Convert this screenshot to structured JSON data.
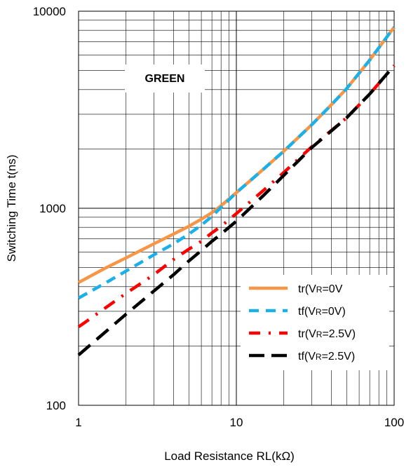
{
  "chart_data": {
    "type": "line",
    "xlabel": "Load Resistance RL(kΩ)",
    "ylabel": "Switching Time t(ns)",
    "xscale": "log",
    "yscale": "log",
    "xlim": [
      1,
      100
    ],
    "ylim": [
      100,
      10000
    ],
    "xticks": [
      {
        "v": 1,
        "label": "1"
      },
      {
        "v": 10,
        "label": "10"
      },
      {
        "v": 100,
        "label": "100"
      }
    ],
    "yticks": [
      {
        "v": 100,
        "label": "100"
      },
      {
        "v": 1000,
        "label": "1000"
      },
      {
        "v": 10000,
        "label": "10000"
      }
    ],
    "grid": true,
    "annotation": "GREEN",
    "legend_position": "bottom-right",
    "series": [
      {
        "name": "tr(VR=0V)",
        "color": "#F79646",
        "dash": "solid",
        "x": [
          1,
          1.5,
          2,
          3,
          4,
          5,
          6,
          7,
          8,
          10,
          15,
          20,
          30,
          40,
          50,
          70,
          100
        ],
        "y": [
          420,
          500,
          560,
          660,
          740,
          810,
          880,
          950,
          1030,
          1200,
          1590,
          1950,
          2650,
          3350,
          4050,
          5650,
          8300
        ]
      },
      {
        "name": "tf(VR=0V)",
        "color": "#1CB0E8",
        "dash": "dash",
        "x": [
          1,
          1.5,
          2,
          3,
          4,
          5,
          6,
          7,
          8,
          10,
          15,
          20,
          30,
          40,
          50,
          70,
          100
        ],
        "y": [
          350,
          420,
          480,
          580,
          660,
          740,
          820,
          910,
          1010,
          1200,
          1590,
          1950,
          2650,
          3350,
          4050,
          5650,
          8300
        ]
      },
      {
        "name": "tr(VR=2.5V)",
        "color": "#FF0000",
        "dash": "dashdot",
        "x": [
          1,
          2,
          3,
          4,
          5,
          6,
          7,
          8,
          10,
          15,
          20,
          30,
          40,
          50,
          70,
          100
        ],
        "y": [
          250,
          370,
          460,
          550,
          620,
          680,
          750,
          810,
          940,
          1240,
          1520,
          2050,
          2480,
          2880,
          3800,
          5300
        ]
      },
      {
        "name": "tf(VR=2.5V)",
        "color": "#000000",
        "dash": "longdash",
        "x": [
          1,
          2,
          3,
          4,
          5,
          6,
          7,
          8,
          10,
          15,
          20,
          30,
          40,
          50,
          70,
          100
        ],
        "y": [
          180,
          290,
          380,
          460,
          540,
          610,
          680,
          740,
          860,
          1170,
          1470,
          2030,
          2470,
          2880,
          3800,
          5300
        ]
      }
    ],
    "legend_labels": [
      {
        "prefix": "tr(V",
        "sub": "R",
        "suffix": "=0V"
      },
      {
        "prefix": "tf(V",
        "sub": "R",
        "suffix": "=0V)"
      },
      {
        "prefix": "tr(V",
        "sub": "R",
        "suffix": "=2.5V)"
      },
      {
        "prefix": "tf(V",
        "sub": "R",
        "suffix": "=2.5V)"
      }
    ]
  }
}
